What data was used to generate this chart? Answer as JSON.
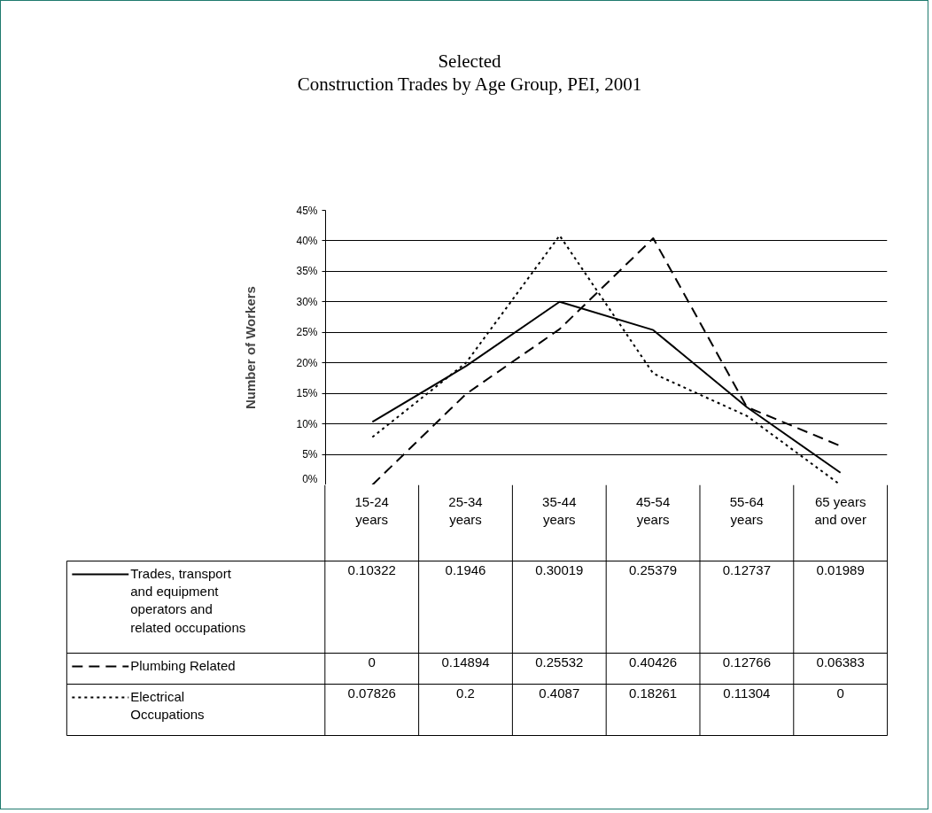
{
  "chart_data": {
    "type": "line",
    "title": "Selected\nConstruction Trades by Age Group, PEI, 2001",
    "ylabel": "Number of Workers",
    "categories": [
      "15-24 years",
      "25-34 years",
      "35-44 years",
      "45-54 years",
      "55-64 years",
      "65 years and over"
    ],
    "series": [
      {
        "name": "Trades, transport and equipment operators and related occupations",
        "color": "#000000",
        "line_style": "solid",
        "values": [
          0.10322,
          0.1946,
          0.30019,
          0.25379,
          0.12737,
          0.01989
        ],
        "value_labels": [
          "0.10322",
          "0.1946",
          "0.30019",
          "0.25379",
          "0.12737",
          "0.01989"
        ]
      },
      {
        "name": "Plumbing Related",
        "color": "#000000",
        "line_style": "dashed",
        "values": [
          0,
          0.14894,
          0.25532,
          0.40426,
          0.12766,
          0.06383
        ],
        "value_labels": [
          "0",
          "0.14894",
          "0.25532",
          "0.40426",
          "0.12766",
          "0.06383"
        ]
      },
      {
        "name": "Electrical Occupations",
        "color": "#000000",
        "line_style": "dotted",
        "values": [
          0.07826,
          0.2,
          0.4087,
          0.18261,
          0.11304,
          0
        ],
        "value_labels": [
          "0.07826",
          "0.2",
          "0.4087",
          "0.18261",
          "0.11304",
          "0"
        ]
      }
    ],
    "ylim": [
      0,
      0.45
    ],
    "yticks": [
      {
        "value": 0,
        "label": "0%"
      },
      {
        "value": 0.05,
        "label": "5%"
      },
      {
        "value": 0.1,
        "label": "10%"
      },
      {
        "value": 0.15,
        "label": "15%"
      },
      {
        "value": 0.2,
        "label": "20%"
      },
      {
        "value": 0.25,
        "label": "25%"
      },
      {
        "value": 0.3,
        "label": "30%"
      },
      {
        "value": 0.35,
        "label": "35%"
      },
      {
        "value": 0.4,
        "label": "40%"
      },
      {
        "value": 0.45,
        "label": "45%"
      }
    ],
    "grid": "y",
    "legend": "bottom left"
  }
}
